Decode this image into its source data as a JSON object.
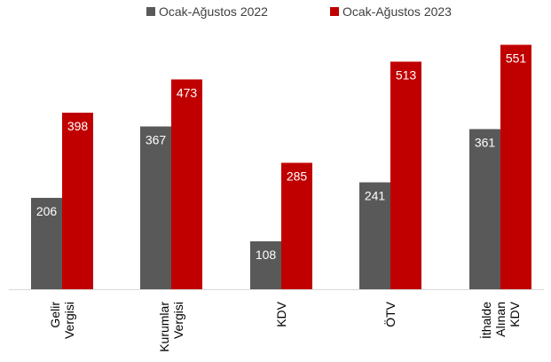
{
  "chart_data": {
    "type": "bar",
    "categories": [
      [
        "Gelir",
        "Vergisi"
      ],
      [
        "Kurumlar",
        "Vergisi"
      ],
      [
        "KDV"
      ],
      [
        "ÖTV"
      ],
      [
        "İthalde",
        "Alınan",
        "KDV"
      ]
    ],
    "series": [
      {
        "name": "Ocak-Ağustos 2022",
        "color": "#595959",
        "values": [
          206,
          367,
          108,
          241,
          361
        ]
      },
      {
        "name": "Ocak-Ağustos 2023",
        "color": "#c00000",
        "values": [
          398,
          473,
          285,
          513,
          551
        ]
      }
    ],
    "ylim": [
      0,
      560
    ],
    "grid": false,
    "legend_position": "top-center",
    "title": "",
    "xlabel": "",
    "ylabel": ""
  }
}
